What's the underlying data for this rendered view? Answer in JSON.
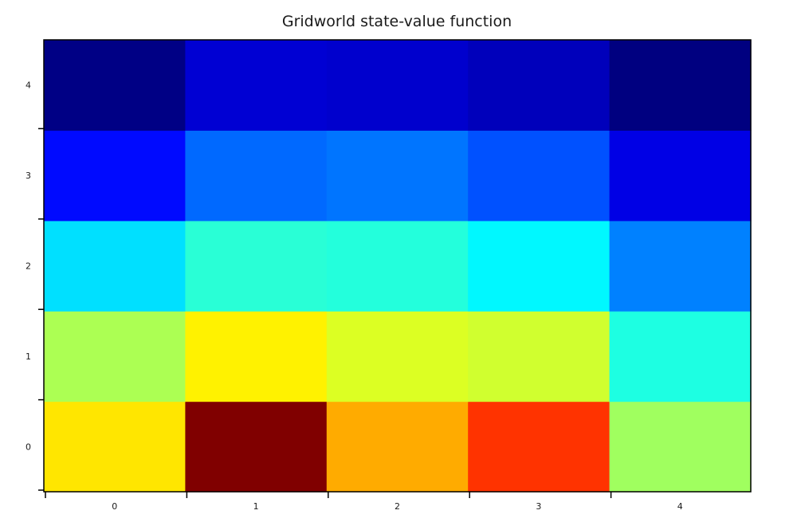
{
  "chart_data": {
    "type": "heatmap",
    "title": "Gridworld state-value function",
    "xlabel": "",
    "ylabel": "",
    "x_categories": [
      "0",
      "1",
      "2",
      "3",
      "4"
    ],
    "y_categories": [
      "0",
      "1",
      "2",
      "3",
      "4"
    ],
    "values": [
      [
        5.5,
        8.5,
        6.0,
        7.0,
        4.5
      ],
      [
        4.6,
        5.4,
        5.0,
        4.9,
        3.4
      ],
      [
        2.9,
        3.5,
        3.45,
        3.1,
        2.1
      ],
      [
        1.1,
        1.9,
        2.0,
        1.7,
        0.8
      ],
      [
        0.0,
        0.65,
        0.6,
        0.45,
        -0.05
      ]
    ],
    "colormap": "jet",
    "color_range": [
      -0.05,
      8.5
    ],
    "grid": false,
    "legend": "none"
  }
}
